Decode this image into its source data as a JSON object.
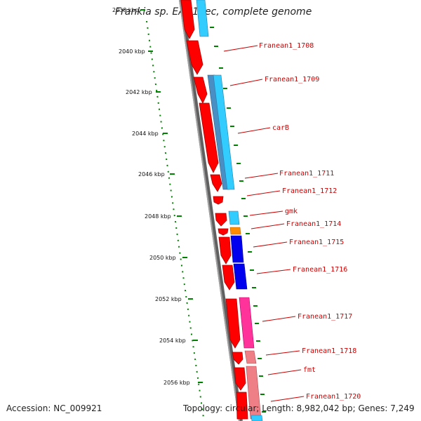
{
  "title": "Frankia sp. EAN1pec, complete genome",
  "accession_text": "Accession: NC_009921",
  "summary_text": "Topology: circular; Length: 8,982,042 bp; Genes: 7,249",
  "colors": {
    "backbone": "#808080",
    "tick": "#008000",
    "label_text": "#cc0000",
    "gene_forward": "#ff0000",
    "cyan": "#33ccff",
    "steel": "#4a8fc4",
    "blue": "#0000ee",
    "orange": "#ff8c00",
    "magenta": "#ff3399",
    "pink": "#ee7f86"
  },
  "ticks": [
    {
      "label": "2038 kbp"
    },
    {
      "label": "2040 kbp"
    },
    {
      "label": "2042 kbp"
    },
    {
      "label": "2044 kbp"
    },
    {
      "label": "2046 kbp"
    },
    {
      "label": "2048 kbp"
    },
    {
      "label": "2050 kbp"
    },
    {
      "label": "2052 kbp"
    },
    {
      "label": "2054 kbp"
    },
    {
      "label": "2056 kbp"
    }
  ],
  "gene_labels": [
    "Franean1_1708",
    "Franean1_1709",
    "carB",
    "Franean1_1711",
    "Franean1_1712",
    "gmk",
    "Franean1_1714",
    "Franean1_1715",
    "Franean1_1716",
    "Franean1_1717",
    "Franean1_1718",
    "fmt",
    "Franean1_1720"
  ]
}
